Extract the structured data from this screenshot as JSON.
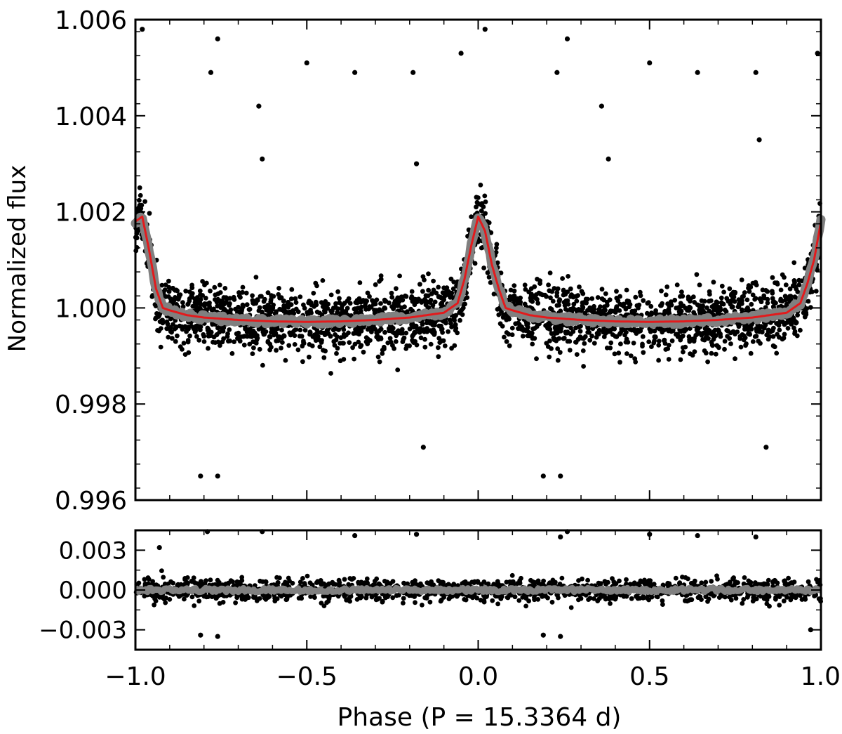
{
  "chart_data": [
    {
      "type": "scatter",
      "panel": "top",
      "xlabel": "",
      "ylabel": "Normalized flux",
      "xlim": [
        -1.0,
        1.0
      ],
      "ylim": [
        0.996,
        1.006
      ],
      "y_ticks": [
        0.996,
        0.998,
        1.0,
        1.002,
        1.004,
        1.006
      ],
      "y_tick_labels": [
        "0.996",
        "0.998",
        "1.000",
        "1.002",
        "1.004",
        "1.006"
      ],
      "grid": false,
      "colors": {
        "points": "#000000",
        "binned": "#808080",
        "model": "#e31a1c"
      },
      "phase_curve_points": {
        "x": [
          -1.0,
          -0.98,
          -0.96,
          -0.94,
          -0.92,
          -0.9,
          -0.85,
          -0.8,
          -0.7,
          -0.6,
          -0.5,
          -0.4,
          -0.3,
          -0.2,
          -0.1,
          -0.06,
          -0.04,
          -0.02,
          0.0,
          0.02,
          0.04,
          0.06,
          0.08,
          0.1,
          0.15,
          0.2,
          0.3,
          0.4,
          0.5,
          0.6,
          0.7,
          0.8,
          0.9,
          0.94,
          0.96,
          0.98,
          1.0
        ],
        "y": [
          1.0018,
          1.0019,
          1.0012,
          1.0004,
          1.0,
          0.99995,
          0.99985,
          0.9998,
          0.99975,
          0.99972,
          0.99971,
          0.99972,
          0.99975,
          0.9998,
          0.9999,
          1.0001,
          1.0006,
          1.0013,
          1.0019,
          1.0016,
          1.0009,
          1.0004,
          1.0,
          0.99995,
          0.99985,
          0.9998,
          0.99975,
          0.99972,
          0.99971,
          0.99972,
          0.99975,
          0.9998,
          0.9999,
          1.0001,
          1.0005,
          1.001,
          1.0018
        ]
      },
      "outliers": [
        {
          "x": -0.98,
          "y": 1.0058
        },
        {
          "x": -0.76,
          "y": 1.0056
        },
        {
          "x": -0.78,
          "y": 1.0049
        },
        {
          "x": -0.64,
          "y": 1.0042
        },
        {
          "x": -0.63,
          "y": 1.0031
        },
        {
          "x": -0.5,
          "y": 1.0051
        },
        {
          "x": -0.36,
          "y": 1.0049
        },
        {
          "x": -0.19,
          "y": 1.0049
        },
        {
          "x": -0.18,
          "y": 1.003
        },
        {
          "x": -0.05,
          "y": 1.0053
        },
        {
          "x": 0.02,
          "y": 1.0058
        },
        {
          "x": 0.23,
          "y": 1.0049
        },
        {
          "x": 0.26,
          "y": 1.0056
        },
        {
          "x": 0.36,
          "y": 1.0042
        },
        {
          "x": 0.38,
          "y": 1.0031
        },
        {
          "x": 0.5,
          "y": 1.0051
        },
        {
          "x": 0.64,
          "y": 1.0049
        },
        {
          "x": 0.81,
          "y": 1.0049
        },
        {
          "x": 0.82,
          "y": 1.0035
        },
        {
          "x": 0.99,
          "y": 1.0053
        },
        {
          "x": -0.81,
          "y": 0.9965
        },
        {
          "x": -0.76,
          "y": 0.9965
        },
        {
          "x": 0.19,
          "y": 0.9965
        },
        {
          "x": 0.24,
          "y": 0.9965
        },
        {
          "x": -0.16,
          "y": 0.9971
        },
        {
          "x": 0.84,
          "y": 0.9971
        }
      ]
    },
    {
      "type": "scatter",
      "panel": "bottom",
      "xlabel": "Phase (P = 15.3364 d)",
      "ylabel": "",
      "xlim": [
        -1.0,
        1.0
      ],
      "ylim": [
        -0.0045,
        0.0045
      ],
      "x_ticks": [
        -1.0,
        -0.5,
        0.0,
        0.5,
        1.0
      ],
      "x_tick_labels": [
        "−1.0",
        "−0.5",
        "0.0",
        "0.5",
        "1.0"
      ],
      "y_ticks": [
        -0.003,
        0.0,
        0.003
      ],
      "y_tick_labels": [
        "−0.003",
        "0.000",
        "0.003"
      ],
      "grid": false,
      "colors": {
        "points": "#000000",
        "binned": "#808080"
      },
      "residual_level": 0.0,
      "outliers": [
        {
          "x": -0.93,
          "y": 0.0032
        },
        {
          "x": -0.79,
          "y": 0.0044
        },
        {
          "x": -0.63,
          "y": 0.0044
        },
        {
          "x": -0.36,
          "y": 0.0041
        },
        {
          "x": -0.18,
          "y": 0.0042
        },
        {
          "x": 0.24,
          "y": 0.004
        },
        {
          "x": 0.26,
          "y": 0.0044
        },
        {
          "x": 0.5,
          "y": 0.0042
        },
        {
          "x": 0.64,
          "y": 0.0041
        },
        {
          "x": 0.81,
          "y": 0.004
        },
        {
          "x": -0.81,
          "y": -0.0034
        },
        {
          "x": -0.76,
          "y": -0.0035
        },
        {
          "x": 0.19,
          "y": -0.0034
        },
        {
          "x": 0.24,
          "y": -0.0035
        },
        {
          "x": 0.97,
          "y": -0.003
        }
      ]
    }
  ]
}
